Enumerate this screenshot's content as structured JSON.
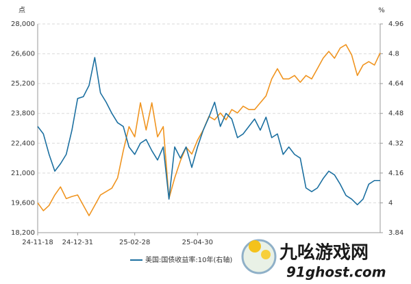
{
  "chart_data": {
    "type": "line",
    "ylabel": "点",
    "y2label": "%",
    "categories": [
      "24-11-18",
      null,
      null,
      null,
      null,
      null,
      null,
      "24-12-31",
      null,
      null,
      null,
      null,
      null,
      null,
      null,
      null,
      null,
      "25-02-28",
      null,
      null,
      null,
      null,
      null,
      null,
      null,
      null,
      null,
      null,
      "25-04-30",
      null,
      null,
      null,
      null,
      null,
      null,
      null,
      null,
      null,
      null,
      null,
      null,
      null,
      null,
      null,
      null,
      null,
      null,
      null,
      null,
      null,
      null,
      null,
      null,
      null,
      null,
      null,
      null,
      null,
      null,
      null,
      null
    ],
    "series": [
      {
        "color": "#f0941f",
        "values": [
          19600,
          19230,
          19480,
          19970,
          20350,
          19800,
          19900,
          19970,
          19480,
          19000,
          19480,
          19970,
          20130,
          20290,
          20770,
          22050,
          23180,
          22700,
          24300,
          23020,
          24300,
          22700,
          23180,
          19800,
          20770,
          21570,
          22210,
          21890,
          22540,
          23020,
          23660,
          23500,
          23820,
          23500,
          23980,
          23820,
          24140,
          23980,
          23980,
          24300,
          24620,
          25420,
          25900,
          25420,
          25420,
          25580,
          25260,
          25580,
          25420,
          25900,
          26390,
          26710,
          26390,
          26870,
          27030,
          26550,
          25580,
          26070,
          26230,
          26070,
          26640
        ]
      },
      {
        "name": "美国:国债收益率:10年(右轴)",
        "color": "#1b6fa0",
        "axis": "y2",
        "values": [
          4.41,
          4.37,
          4.26,
          4.17,
          4.21,
          4.26,
          4.39,
          4.56,
          4.57,
          4.63,
          4.78,
          4.59,
          4.54,
          4.48,
          4.43,
          4.41,
          4.3,
          4.26,
          4.32,
          4.34,
          4.28,
          4.23,
          4.3,
          4.02,
          4.3,
          4.24,
          4.3,
          4.19,
          4.3,
          4.39,
          4.46,
          4.54,
          4.41,
          4.48,
          4.45,
          4.35,
          4.37,
          4.41,
          4.45,
          4.39,
          4.46,
          4.35,
          4.37,
          4.26,
          4.3,
          4.26,
          4.24,
          4.08,
          4.06,
          4.08,
          4.13,
          4.17,
          4.15,
          4.1,
          4.04,
          4.02,
          3.99,
          4.02,
          4.1,
          4.12,
          4.12
        ]
      }
    ],
    "ylim": [
      18200,
      28000
    ],
    "yticks": [
      {
        "value": 18200,
        "label": "18,200"
      },
      {
        "value": 19600,
        "label": "19,600"
      },
      {
        "value": 21000,
        "label": "21,000"
      },
      {
        "value": 22400,
        "label": "22,400"
      },
      {
        "value": 23800,
        "label": "23,800"
      },
      {
        "value": 25200,
        "label": "25,200"
      },
      {
        "value": 26600,
        "label": "26,600"
      },
      {
        "value": 28000,
        "label": "28,000"
      }
    ],
    "y2lim": [
      3.84,
      4.96
    ],
    "y2ticks": [
      3.84,
      4,
      4.16,
      4.32,
      4.48,
      4.64,
      4.8,
      4.96
    ],
    "grid": true
  },
  "watermark": {
    "title": "九吆游戏网",
    "url": "91ghost.com"
  }
}
